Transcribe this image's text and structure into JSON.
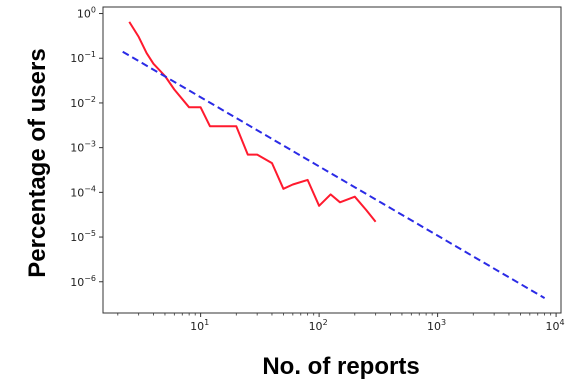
{
  "chart_data": {
    "type": "line",
    "title": "",
    "xlabel": "No. of reports",
    "ylabel": "Percentage of users",
    "xscale": "log",
    "yscale": "log",
    "xlim": [
      1.5,
      11000
    ],
    "ylim": [
      2e-07,
      1.4
    ],
    "grid": false,
    "legend": "none",
    "x_ticks": [
      {
        "value": 10,
        "base": "10",
        "exp": "1"
      },
      {
        "value": 100,
        "base": "10",
        "exp": "2"
      },
      {
        "value": 1000,
        "base": "10",
        "exp": "3"
      },
      {
        "value": 10000,
        "base": "10",
        "exp": "4"
      }
    ],
    "y_ticks": [
      {
        "value": 1,
        "base": "10",
        "exp": "0"
      },
      {
        "value": 0.1,
        "base": "10",
        "exp": "−1"
      },
      {
        "value": 0.01,
        "base": "10",
        "exp": "−2"
      },
      {
        "value": 0.001,
        "base": "10",
        "exp": "−3"
      },
      {
        "value": 0.0001,
        "base": "10",
        "exp": "−4"
      },
      {
        "value": 1e-05,
        "base": "10",
        "exp": "−5"
      },
      {
        "value": 1e-06,
        "base": "10",
        "exp": "−6"
      }
    ],
    "series": [
      {
        "style": "solid",
        "color": "#ff1a2e",
        "x": [
          2.5,
          3.0,
          3.5,
          4.0,
          5.0,
          6.0,
          8.0,
          10.0,
          12.0,
          15.0,
          20.0,
          25.0,
          30.0,
          40.0,
          50.0,
          60.0,
          80.0,
          100.0,
          125.0,
          150.0,
          200.0,
          250.0,
          300.0
        ],
        "y": [
          0.65,
          0.3,
          0.13,
          0.075,
          0.04,
          0.02,
          0.008,
          0.008,
          0.003,
          0.003,
          0.003,
          0.0007,
          0.0007,
          0.00045,
          0.00012,
          0.00015,
          0.00019,
          5e-05,
          9e-05,
          6e-05,
          8e-05,
          4e-05,
          2.2e-05
        ]
      },
      {
        "style": "dashed",
        "color": "#2b2be6",
        "x": [
          2.2,
          8000
        ],
        "y": [
          0.14,
          4.3e-07
        ]
      }
    ]
  }
}
